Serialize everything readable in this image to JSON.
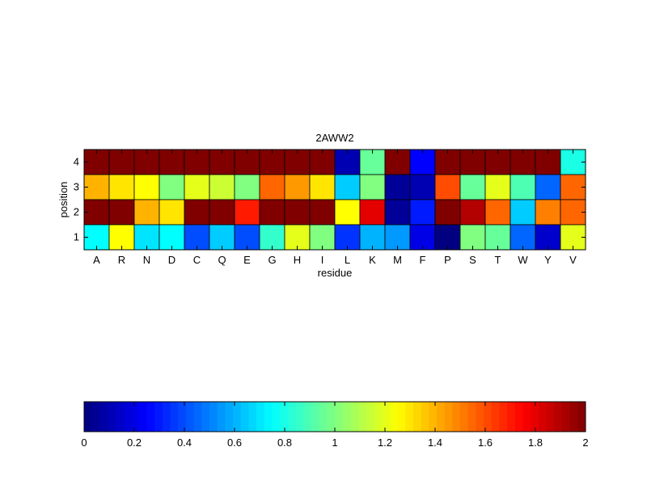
{
  "chart_data": {
    "type": "heatmap",
    "title": "2AWW2",
    "xlabel": "residue",
    "ylabel": "position",
    "categories": [
      "A",
      "R",
      "N",
      "D",
      "C",
      "Q",
      "E",
      "G",
      "H",
      "I",
      "L",
      "K",
      "M",
      "F",
      "P",
      "S",
      "T",
      "W",
      "Y",
      "V"
    ],
    "y_categories": [
      "1",
      "2",
      "3",
      "4"
    ],
    "rows": [
      {
        "position": "4",
        "values": [
          2.0,
          2.0,
          2.0,
          2.0,
          2.0,
          2.0,
          2.0,
          2.0,
          2.0,
          2.0,
          0.1,
          0.95,
          2.0,
          0.25,
          2.0,
          2.0,
          2.0,
          2.0,
          2.0,
          0.8
        ]
      },
      {
        "position": "3",
        "values": [
          1.4,
          1.3,
          1.25,
          1.0,
          1.2,
          1.15,
          1.0,
          1.55,
          1.45,
          1.3,
          0.65,
          1.0,
          0.05,
          0.1,
          1.6,
          0.95,
          1.2,
          0.9,
          0.45,
          1.55
        ]
      },
      {
        "position": "2",
        "values": [
          2.0,
          2.0,
          1.4,
          1.3,
          2.0,
          2.0,
          1.7,
          2.0,
          2.0,
          2.0,
          1.25,
          1.8,
          0.05,
          0.3,
          2.0,
          1.9,
          1.55,
          0.65,
          1.5,
          1.55
        ]
      },
      {
        "position": "1",
        "values": [
          0.75,
          1.25,
          0.7,
          0.75,
          0.4,
          0.65,
          0.4,
          0.85,
          1.2,
          1.0,
          0.35,
          0.6,
          0.55,
          0.2,
          0.0,
          1.0,
          0.95,
          0.45,
          0.15,
          1.2
        ]
      }
    ],
    "colormap": "jet",
    "clim": [
      0,
      2
    ],
    "colorbar": {
      "orientation": "horizontal",
      "ticks": [
        "0",
        "0.2",
        "0.4",
        "0.6",
        "0.8",
        "1",
        "1.2",
        "1.4",
        "1.6",
        "1.8",
        "2"
      ]
    }
  }
}
